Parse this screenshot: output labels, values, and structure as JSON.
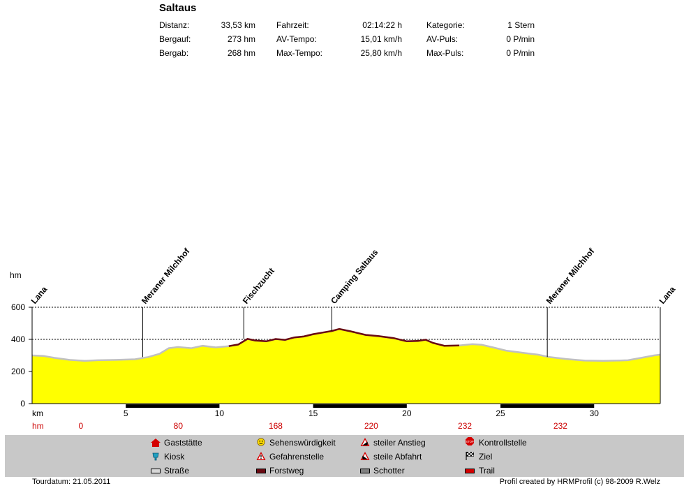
{
  "title": "Saltaus",
  "stats": {
    "col1": [
      {
        "label": "Distanz:",
        "value": "33,53 km"
      },
      {
        "label": "Bergauf:",
        "value": "273 hm"
      },
      {
        "label": "Bergab:",
        "value": "268 hm"
      }
    ],
    "col2": [
      {
        "label": "Fahrzeit:",
        "value": "02:14:22 h"
      },
      {
        "label": "AV-Tempo:",
        "value": "15,01 km/h"
      },
      {
        "label": "Max-Tempo:",
        "value": "25,80 km/h"
      }
    ],
    "col3": [
      {
        "label": "Kategorie:",
        "value": "1 Stern"
      },
      {
        "label": "AV-Puls:",
        "value": "0 P/min"
      },
      {
        "label": "Max-Puls:",
        "value": "0 P/min"
      }
    ]
  },
  "chart_data": {
    "type": "area",
    "ylabel": "hm",
    "xlabel": "km",
    "xlim": [
      0,
      33.53
    ],
    "ylim": [
      0,
      600
    ],
    "yticks": [
      0,
      200,
      400,
      600
    ],
    "xticks": [
      5,
      10,
      15,
      20,
      25,
      30
    ],
    "grid": "dashed horizontal at 200, 400, 600",
    "fill_color": "#ffff00",
    "profile": [
      [
        0,
        300
      ],
      [
        0.6,
        297
      ],
      [
        1.2,
        285
      ],
      [
        2.0,
        272
      ],
      [
        2.8,
        266
      ],
      [
        3.5,
        270
      ],
      [
        4.5,
        272
      ],
      [
        5.5,
        276
      ],
      [
        6.2,
        290
      ],
      [
        6.8,
        310
      ],
      [
        7.3,
        345
      ],
      [
        7.8,
        352
      ],
      [
        8.5,
        345
      ],
      [
        9.1,
        360
      ],
      [
        9.8,
        350
      ],
      [
        10.5,
        358
      ],
      [
        11.0,
        368
      ],
      [
        11.5,
        403
      ],
      [
        11.9,
        393
      ],
      [
        12.5,
        388
      ],
      [
        13.0,
        402
      ],
      [
        13.5,
        397
      ],
      [
        14.0,
        412
      ],
      [
        14.5,
        418
      ],
      [
        15.0,
        432
      ],
      [
        15.5,
        442
      ],
      [
        16.0,
        452
      ],
      [
        16.4,
        465
      ],
      [
        17.0,
        450
      ],
      [
        17.8,
        428
      ],
      [
        18.5,
        420
      ],
      [
        19.3,
        408
      ],
      [
        20.0,
        388
      ],
      [
        20.6,
        390
      ],
      [
        21.0,
        398
      ],
      [
        21.4,
        378
      ],
      [
        22.0,
        360
      ],
      [
        22.8,
        362
      ],
      [
        23.5,
        370
      ],
      [
        24.0,
        366
      ],
      [
        24.6,
        350
      ],
      [
        25.3,
        330
      ],
      [
        26.2,
        316
      ],
      [
        27.0,
        305
      ],
      [
        27.6,
        290
      ],
      [
        28.5,
        278
      ],
      [
        29.5,
        268
      ],
      [
        30.5,
        266
      ],
      [
        31.2,
        268
      ],
      [
        31.8,
        270
      ],
      [
        32.5,
        285
      ],
      [
        33.2,
        300
      ],
      [
        33.53,
        305
      ]
    ],
    "forstweg_segments": [
      [
        10.3,
        22.8
      ]
    ],
    "distance_bar_segments": [
      [
        5,
        10
      ],
      [
        15,
        20
      ],
      [
        25,
        30
      ]
    ],
    "waypoints": [
      {
        "km": 0.0,
        "label": "Lana"
      },
      {
        "km": 5.9,
        "label": "Meraner Milchhof"
      },
      {
        "km": 11.3,
        "label": "Fischzucht"
      },
      {
        "km": 16.0,
        "label": "Camping Saltaus"
      },
      {
        "km": 27.5,
        "label": "Meraner Milchhof"
      },
      {
        "km": 33.53,
        "label": "Lana"
      }
    ],
    "hm_row_label": "hm",
    "hm_row": [
      {
        "km": 2.6,
        "value": "0"
      },
      {
        "km": 7.8,
        "value": "80"
      },
      {
        "km": 13.0,
        "value": "168"
      },
      {
        "km": 18.1,
        "value": "220"
      },
      {
        "km": 23.1,
        "value": "232"
      },
      {
        "km": 28.2,
        "value": "232"
      }
    ]
  },
  "legend": [
    {
      "icon": "house-icon",
      "label": "Gaststätte",
      "color": "#d40000"
    },
    {
      "icon": "smiley-icon",
      "label": "Sehenswürdigkeit",
      "color": "#ffdd00"
    },
    {
      "icon": "steep-climb-icon",
      "label": "steiler Anstieg",
      "color": "#d40000"
    },
    {
      "icon": "stop-sign-icon",
      "label": "Kontrollstelle",
      "color": "#d40000"
    },
    {
      "icon": "kiosk-icon",
      "label": "Kiosk",
      "color": "#20a0c0"
    },
    {
      "icon": "danger-icon",
      "label": "Gefahrenstelle",
      "color": "#d40000"
    },
    {
      "icon": "steep-descent-icon",
      "label": "steile Abfahrt",
      "color": "#d40000"
    },
    {
      "icon": "checkered-flag-icon",
      "label": "Ziel",
      "color": "#000000"
    },
    {
      "icon": "road-swatch-icon",
      "label": "Straße",
      "color": "#d8d8d8"
    },
    {
      "icon": "forest-road-swatch-icon",
      "label": "Forstweg",
      "color": "#6a0a12"
    },
    {
      "icon": "gravel-swatch-icon",
      "label": "Schotter",
      "color": "#808080"
    },
    {
      "icon": "trail-swatch-icon",
      "label": "Trail",
      "color": "#d40000"
    }
  ],
  "footer": {
    "date": "Tourdatum: 21.05.2011",
    "credit": "Profil created by HRMProfil (c) 98-2009 R.Welz"
  }
}
